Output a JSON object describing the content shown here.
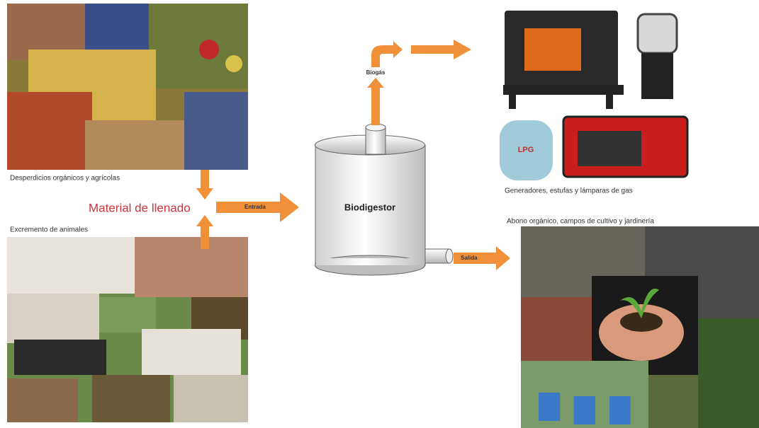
{
  "inputs": {
    "top_label": "Desperdicios orgánicos y agrícolas",
    "bottom_label": "Excremento de animales",
    "merge_label": "Material de llenado"
  },
  "arrows": {
    "entrada": "Entrada",
    "biogas": "Biogás",
    "salida": "Salida"
  },
  "tank": {
    "label": "Biodigestor"
  },
  "outputs": {
    "gas_uses": "Generadores, estufas y lámparas de gas",
    "fertilizer_uses": "Abono orgánico, campos de cultivo y jardinería"
  }
}
